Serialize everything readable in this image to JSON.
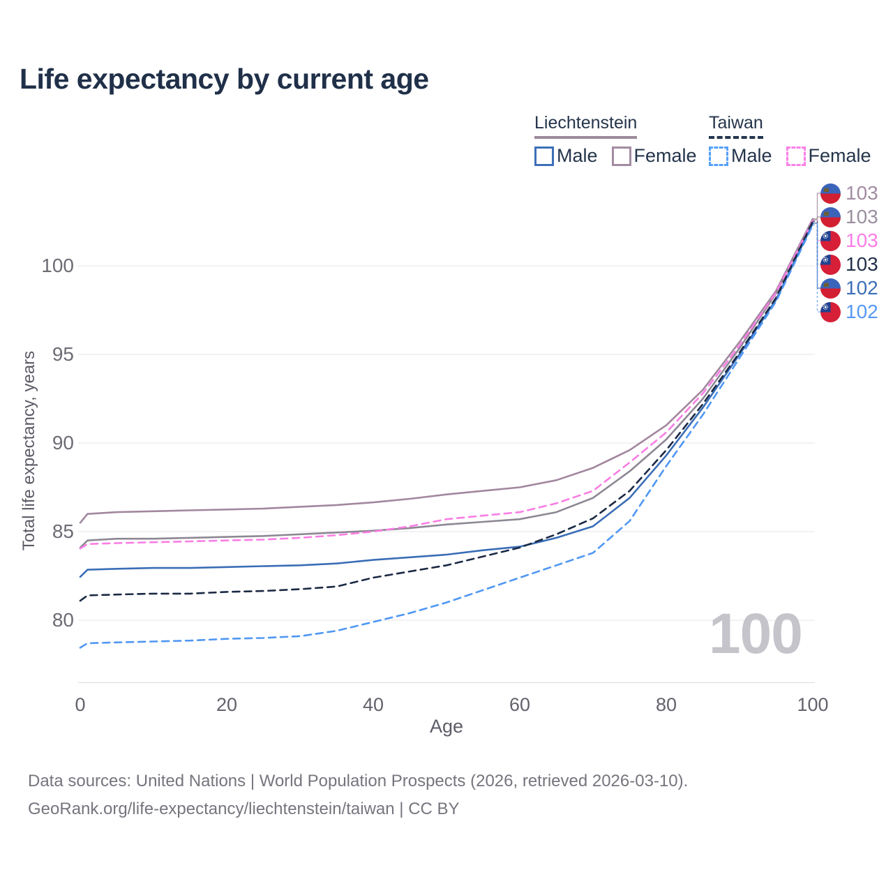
{
  "title": "Life expectancy by current age",
  "legend": {
    "groups": [
      {
        "country": "Liechtenstein",
        "line_style": "solid",
        "underline_color": "#9b8b9b",
        "items": [
          {
            "label": "Male",
            "color": "#3d6fb8"
          },
          {
            "label": "Female",
            "color": "#a38ba1"
          }
        ]
      },
      {
        "country": "Taiwan",
        "line_style": "dashed",
        "underline_color": "#24344f",
        "items": [
          {
            "label": "Male",
            "color": "#55a0fa"
          },
          {
            "label": "Female",
            "color": "#fb7fe8"
          }
        ]
      }
    ]
  },
  "axes": {
    "x_label": "Age",
    "y_label": "Total life expectancy, years"
  },
  "watermark": "100",
  "chart_data": {
    "type": "line",
    "title": "Life expectancy by current age",
    "xlabel": "Age",
    "ylabel": "Total life expectancy, years",
    "xlim": [
      0,
      100
    ],
    "ylim": [
      77,
      103.5
    ],
    "x_ticks": [
      0,
      20,
      40,
      60,
      80,
      100
    ],
    "y_ticks": [
      80,
      85,
      90,
      95,
      100
    ],
    "grid": true,
    "legend_position": "top-right",
    "hover_age": "100",
    "ages": [
      0,
      1,
      5,
      10,
      15,
      20,
      25,
      30,
      35,
      40,
      45,
      50,
      55,
      60,
      65,
      70,
      75,
      80,
      85,
      90,
      95,
      100
    ],
    "series": [
      {
        "id": "liechtenstein-female",
        "country": "Liechtenstein",
        "sex": "Female",
        "line_style": "solid",
        "color": "#a2879e",
        "values": [
          85.5,
          86.0,
          86.1,
          86.15,
          86.2,
          86.25,
          86.3,
          86.4,
          86.5,
          86.65,
          86.85,
          87.1,
          87.3,
          87.5,
          87.9,
          88.6,
          89.6,
          91.0,
          93.0,
          95.7,
          98.6,
          102.65
        ],
        "end_label": "103"
      },
      {
        "id": "liechtenstein-all",
        "country": "Liechtenstein",
        "sex": "Both",
        "line_style": "solid",
        "color": "#8d8793",
        "values": [
          84.1,
          84.5,
          84.6,
          84.6,
          84.65,
          84.7,
          84.75,
          84.85,
          84.95,
          85.05,
          85.2,
          85.4,
          85.55,
          85.7,
          86.1,
          86.9,
          88.4,
          90.2,
          92.5,
          95.35,
          98.45,
          102.6
        ],
        "end_label": "103"
      },
      {
        "id": "liechtenstein-male",
        "country": "Liechtenstein",
        "sex": "Male",
        "line_style": "solid",
        "color": "#3a6db6",
        "values": [
          82.45,
          82.85,
          82.9,
          82.95,
          82.95,
          83.0,
          83.05,
          83.1,
          83.2,
          83.4,
          83.55,
          83.7,
          83.95,
          84.15,
          84.65,
          85.3,
          86.9,
          89.3,
          92.0,
          95.0,
          98.1,
          102.4
        ],
        "end_label": "102"
      },
      {
        "id": "taiwan-female",
        "country": "Taiwan",
        "sex": "Female",
        "line_style": "dashed",
        "color": "#fa7de4",
        "values": [
          84.05,
          84.3,
          84.35,
          84.4,
          84.45,
          84.5,
          84.55,
          84.65,
          84.8,
          85.0,
          85.3,
          85.7,
          85.9,
          86.1,
          86.6,
          87.3,
          88.9,
          90.6,
          92.8,
          95.5,
          98.5,
          102.55
        ],
        "end_label": "103"
      },
      {
        "id": "taiwan-all",
        "country": "Taiwan",
        "sex": "Both",
        "line_style": "dashed",
        "color": "#1b2944",
        "values": [
          81.1,
          81.4,
          81.45,
          81.5,
          81.5,
          81.6,
          81.65,
          81.75,
          81.9,
          82.4,
          82.75,
          83.1,
          83.6,
          84.1,
          84.85,
          85.75,
          87.3,
          89.6,
          92.2,
          95.1,
          98.2,
          102.5
        ],
        "end_label": "103"
      },
      {
        "id": "taiwan-male",
        "country": "Taiwan",
        "sex": "Male",
        "line_style": "dashed",
        "color": "#4f97f3",
        "values": [
          78.45,
          78.7,
          78.75,
          78.8,
          78.85,
          78.95,
          79.0,
          79.1,
          79.4,
          79.9,
          80.4,
          81.0,
          81.7,
          82.4,
          83.1,
          83.8,
          85.6,
          88.7,
          91.6,
          94.8,
          98.0,
          102.3
        ],
        "end_label": "102"
      }
    ]
  },
  "end_labels": {
    "rows": [
      {
        "series": "liechtenstein-female",
        "flag": "liechtenstein",
        "value": "103",
        "color": "#a28ca1"
      },
      {
        "series": "liechtenstein-all",
        "flag": "liechtenstein",
        "value": "103",
        "color": "#9a8f9e"
      },
      {
        "series": "taiwan-female",
        "flag": "taiwan",
        "value": "103",
        "color": "#fb7de7"
      },
      {
        "series": "taiwan-all",
        "flag": "taiwan",
        "value": "103",
        "color": "#22304a"
      },
      {
        "series": "liechtenstein-male",
        "flag": "liechtenstein",
        "value": "102",
        "color": "#3d6fb8"
      },
      {
        "series": "taiwan-male",
        "flag": "taiwan",
        "value": "102",
        "color": "#5599f5"
      }
    ]
  },
  "footer": {
    "line1": "Data sources: United Nations | World Population Prospects (2026, retrieved 2026-03-10).",
    "line2": "GeoRank.org/life-expectancy/liechtenstein/taiwan | CC BY"
  }
}
